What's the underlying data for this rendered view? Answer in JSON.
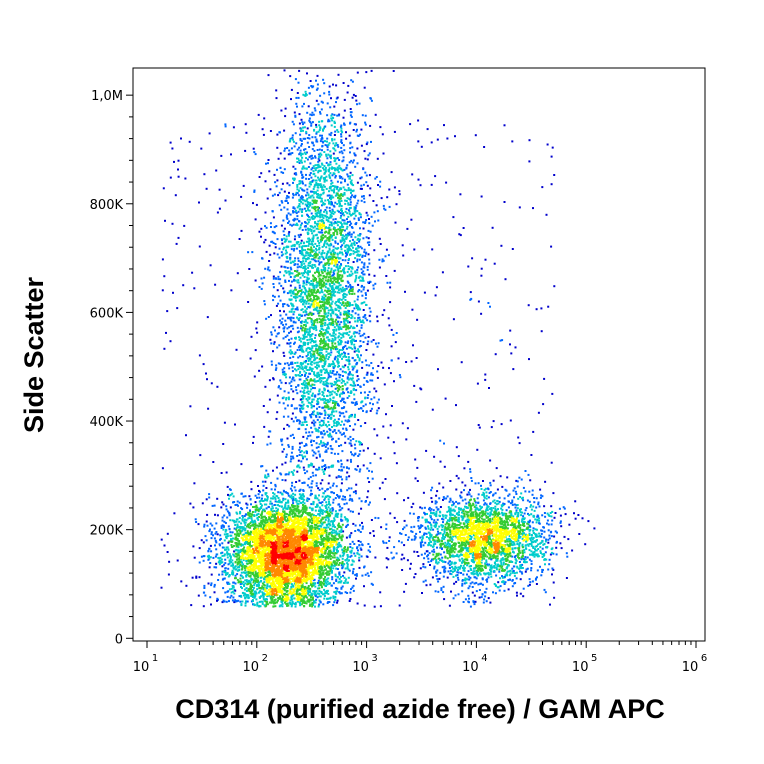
{
  "chart_data": {
    "type": "scatter",
    "plot_style": "density dot plot (pseudocolor)",
    "xlabel": "CD314 (purified azide free) / GAM APC",
    "ylabel": "Side Scatter",
    "x_scale": "log",
    "xlim": [
      7,
      130000
    ],
    "ylim": [
      -5000,
      1050000
    ],
    "x_ticks": [
      {
        "value": 10,
        "base": "10",
        "exp": "1"
      },
      {
        "value": 100,
        "base": "10",
        "exp": "2"
      },
      {
        "value": 1000,
        "base": "10",
        "exp": "3"
      },
      {
        "value": 10000,
        "base": "10",
        "exp": "4"
      },
      {
        "value": 100000,
        "base": "10",
        "exp": "5"
      },
      {
        "value": 1000000,
        "base": "10",
        "exp": "6"
      }
    ],
    "y_ticks": [
      {
        "value": 0,
        "label": "0"
      },
      {
        "value": 200000,
        "label": "200K"
      },
      {
        "value": 400000,
        "label": "400K"
      },
      {
        "value": 600000,
        "label": "600K"
      },
      {
        "value": 800000,
        "label": "800K"
      },
      {
        "value": 1000000,
        "label": "1,0M"
      }
    ],
    "density_colors": [
      "#0000cc",
      "#0066ff",
      "#00cccc",
      "#33cc33",
      "#ffff00",
      "#ff8800",
      "#ff0000"
    ],
    "populations": [
      {
        "x_center": 180,
        "y_center": 160000,
        "x_spread_decades": 0.28,
        "y_spread": 50000,
        "count": 5200
      },
      {
        "x_center": 400,
        "y_center": 640000,
        "x_spread_decades": 0.22,
        "y_spread": 190000,
        "count": 4200
      },
      {
        "x_center": 11000,
        "y_center": 185000,
        "x_spread_decades": 0.3,
        "y_spread": 42000,
        "count": 2600
      }
    ],
    "grid": false,
    "legend": "none"
  }
}
